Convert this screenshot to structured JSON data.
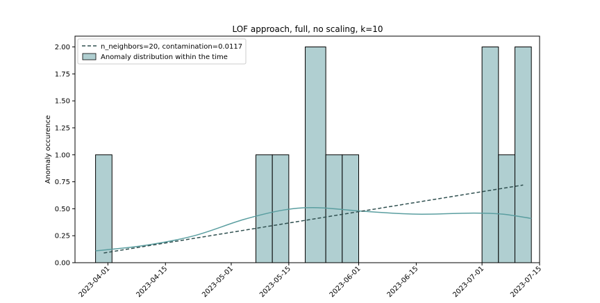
{
  "chart_data": {
    "type": "bar",
    "title": "LOF approach, full, no scaling, k=10",
    "xlabel": "",
    "ylabel": "Anomaly occurence",
    "ylim": [
      0,
      2.1
    ],
    "xlim": [
      "2023-03-24",
      "2023-07-15"
    ],
    "yticks": [
      0.0,
      0.25,
      0.5,
      0.75,
      1.0,
      1.25,
      1.5,
      1.75,
      2.0
    ],
    "ytick_labels": [
      "0.00",
      "0.25",
      "0.50",
      "0.75",
      "1.00",
      "1.25",
      "1.50",
      "1.75",
      "2.00"
    ],
    "xticks": [
      "2023-04-01",
      "2023-04-15",
      "2023-05-01",
      "2023-05-15",
      "2023-06-01",
      "2023-06-15",
      "2023-07-01",
      "2023-07-15"
    ],
    "grid": false,
    "legend_position": "top-left",
    "bar_color": "#b0cfd1",
    "bar_edge_color": "#000000",
    "kde_color": "#5a9ea0",
    "trend_color": "#2f4f4f",
    "bins": [
      {
        "start": "2023-03-29",
        "end": "2023-04-02",
        "value": 1
      },
      {
        "start": "2023-05-07",
        "end": "2023-05-11",
        "value": 1
      },
      {
        "start": "2023-05-11",
        "end": "2023-05-15",
        "value": 1
      },
      {
        "start": "2023-05-19",
        "end": "2023-05-24",
        "value": 2
      },
      {
        "start": "2023-05-24",
        "end": "2023-05-28",
        "value": 1
      },
      {
        "start": "2023-05-28",
        "end": "2023-06-01",
        "value": 1
      },
      {
        "start": "2023-07-01",
        "end": "2023-07-05",
        "value": 2
      },
      {
        "start": "2023-07-05",
        "end": "2023-07-09",
        "value": 1
      },
      {
        "start": "2023-07-09",
        "end": "2023-07-13",
        "value": 2
      }
    ],
    "series": [
      {
        "name": "n_neighbors=20, contamination=0.0117",
        "type": "line",
        "style": "dashed",
        "x": [
          "2023-03-31",
          "2023-07-11"
        ],
        "y": [
          0.09,
          0.72
        ]
      },
      {
        "name": "Anomaly distribution within the time",
        "type": "histogram"
      }
    ],
    "kde": {
      "x": [
        "2023-03-29",
        "2023-04-10",
        "2023-04-22",
        "2023-05-04",
        "2023-05-14",
        "2023-05-22",
        "2023-06-01",
        "2023-06-15",
        "2023-06-29",
        "2023-07-06",
        "2023-07-13"
      ],
      "y": [
        0.11,
        0.16,
        0.25,
        0.4,
        0.49,
        0.51,
        0.48,
        0.45,
        0.46,
        0.45,
        0.41
      ]
    }
  }
}
